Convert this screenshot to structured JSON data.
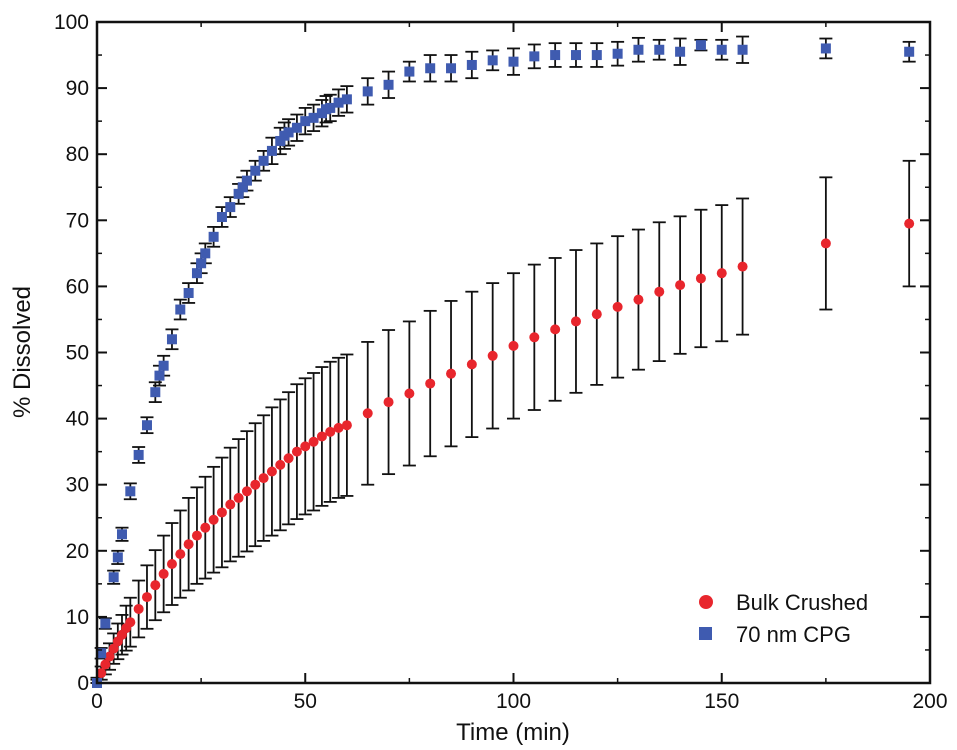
{
  "chart_data": {
    "type": "scatter",
    "title": "",
    "xlabel": "Time (min)",
    "ylabel": "% Dissolved",
    "xlim": [
      0,
      200
    ],
    "ylim": [
      0,
      100
    ],
    "x_ticks": [
      "0",
      "50",
      "100",
      "150",
      "200"
    ],
    "y_ticks": [
      "0",
      "10",
      "20",
      "30",
      "40",
      "50",
      "60",
      "70",
      "80",
      "90",
      "100"
    ],
    "grid": false,
    "legend_position": "bottom-right",
    "series": [
      {
        "name": "70 nm CPG",
        "marker": "square",
        "color": "#3f5bb0",
        "x": [
          0,
          1,
          2,
          4,
          5,
          6,
          8,
          10,
          12,
          14,
          15,
          16,
          18,
          20,
          22,
          24,
          25,
          26,
          28,
          30,
          32,
          34,
          35,
          36,
          38,
          40,
          42,
          44,
          45,
          46,
          48,
          50,
          52,
          54,
          55,
          56,
          58,
          60,
          65,
          70,
          75,
          80,
          85,
          90,
          95,
          100,
          105,
          110,
          115,
          120,
          125,
          130,
          135,
          140,
          145,
          150,
          155,
          175,
          195
        ],
        "y": [
          0,
          4.5,
          9,
          16,
          19,
          22.5,
          29,
          34.5,
          39,
          44,
          46.5,
          48,
          52,
          56.5,
          59,
          62,
          63.5,
          65,
          67.5,
          70.5,
          72,
          74,
          75,
          76,
          77.5,
          79,
          80.5,
          82,
          82.8,
          83.3,
          84,
          85,
          85.5,
          86.2,
          86.8,
          87,
          87.8,
          88.3,
          89.5,
          90.5,
          92.5,
          93,
          93,
          93.5,
          94.2,
          94,
          94.8,
          95,
          95,
          95,
          95.2,
          95.8,
          95.8,
          95.5,
          96.5,
          95.8,
          95.8,
          96,
          95.5
        ],
        "err": [
          0.8,
          0.8,
          0.8,
          1,
          1,
          1,
          1.2,
          1.2,
          1.2,
          1.5,
          1.5,
          1.5,
          1.5,
          1.5,
          1.5,
          1.5,
          1.5,
          1.5,
          1.5,
          1.5,
          1.5,
          1.5,
          1.5,
          1.5,
          1.5,
          1.5,
          2,
          2,
          2,
          2,
          2,
          2,
          2,
          2,
          2,
          2,
          2,
          2,
          2,
          2,
          1.5,
          2,
          2,
          2,
          1.5,
          2,
          1.8,
          1.8,
          1.8,
          1.8,
          1.8,
          1.8,
          1.5,
          2,
          0.8,
          1.5,
          2,
          1.5,
          1.5
        ]
      },
      {
        "name": "Bulk Crushed",
        "marker": "circle",
        "color": "#e8262d",
        "x": [
          0,
          1,
          2,
          3,
          4,
          5,
          6,
          7,
          8,
          10,
          12,
          14,
          16,
          18,
          20,
          22,
          24,
          26,
          28,
          30,
          32,
          34,
          36,
          38,
          40,
          42,
          44,
          46,
          48,
          50,
          52,
          54,
          56,
          58,
          60,
          65,
          70,
          75,
          80,
          85,
          90,
          95,
          100,
          105,
          110,
          115,
          120,
          125,
          130,
          135,
          140,
          145,
          150,
          155,
          175,
          195
        ],
        "y": [
          0,
          1.5,
          2.8,
          4,
          5.2,
          6.3,
          7.3,
          8.3,
          9.2,
          11.2,
          13,
          14.8,
          16.5,
          18,
          19.5,
          21,
          22.3,
          23.5,
          24.7,
          25.8,
          27,
          28,
          29,
          30,
          31,
          32,
          33,
          34,
          35,
          35.8,
          36.5,
          37.3,
          38,
          38.6,
          39,
          40.8,
          42.5,
          43.8,
          45.3,
          46.8,
          48.2,
          49.5,
          51,
          52.3,
          53.5,
          54.7,
          55.8,
          56.9,
          58,
          59.2,
          60.2,
          61.2,
          62,
          63,
          66.5,
          69.5
        ],
        "err": [
          0.5,
          1,
          1.5,
          2,
          2.3,
          2.7,
          3,
          3.4,
          3.7,
          4.3,
          4.8,
          5.3,
          5.8,
          6.2,
          6.6,
          7,
          7.3,
          7.7,
          8,
          8.3,
          8.6,
          8.9,
          9.1,
          9.3,
          9.5,
          9.7,
          9.9,
          10,
          10.2,
          10.3,
          10.4,
          10.5,
          10.6,
          10.6,
          10.7,
          10.8,
          10.9,
          10.9,
          11,
          11,
          11,
          11,
          11,
          11,
          10.8,
          10.8,
          10.7,
          10.7,
          10.6,
          10.5,
          10.4,
          10.4,
          10.3,
          10.3,
          10,
          9.5
        ]
      }
    ]
  }
}
